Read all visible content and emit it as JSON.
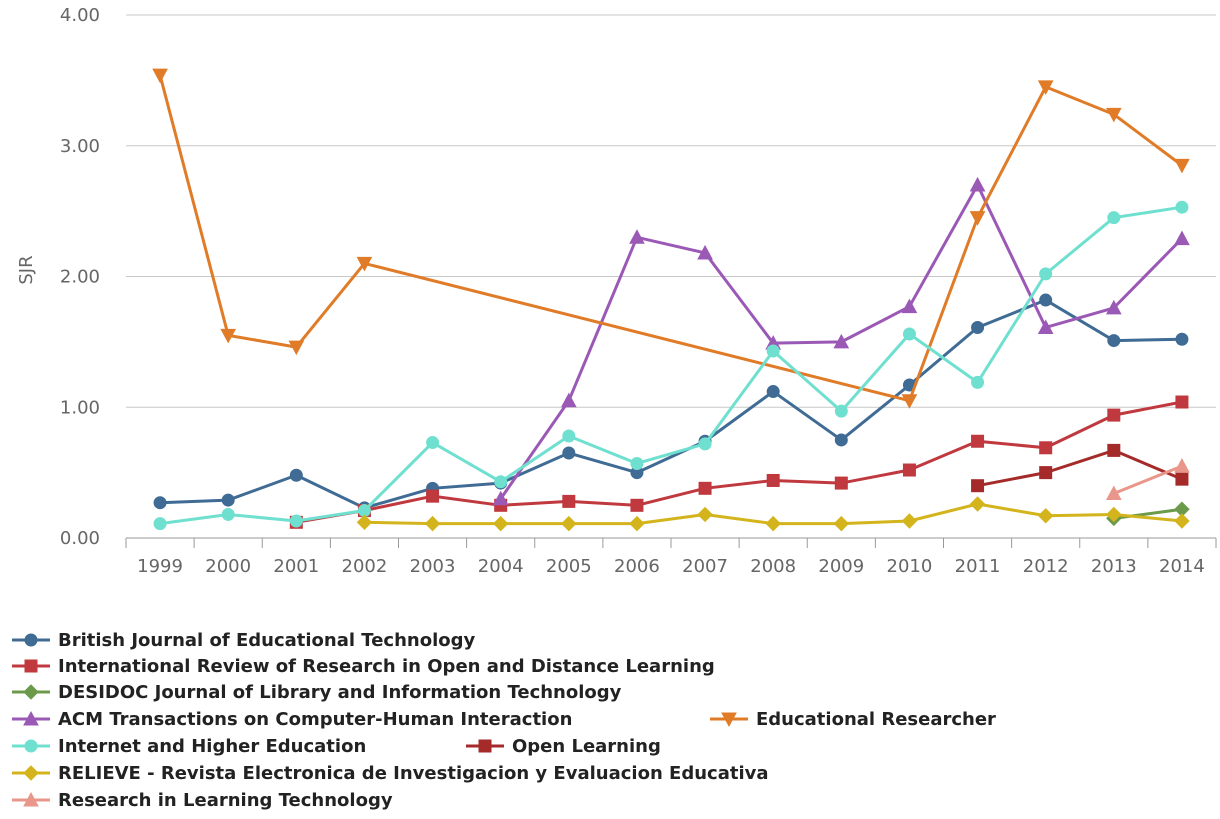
{
  "chart_data": {
    "type": "line",
    "title": "",
    "xlabel": "",
    "ylabel": "SJR",
    "ylim": [
      0,
      4
    ],
    "yticks": [
      "0.00",
      "1.00",
      "2.00",
      "3.00",
      "4.00"
    ],
    "ytick_values": [
      0,
      1,
      2,
      3,
      4
    ],
    "categories": [
      "1999",
      "2000",
      "2001",
      "2002",
      "2003",
      "2004",
      "2005",
      "2006",
      "2007",
      "2008",
      "2009",
      "2010",
      "2011",
      "2012",
      "2013",
      "2014"
    ],
    "grid": true,
    "legend_position": "bottom",
    "series": [
      {
        "name": "British Journal of Educational Technology",
        "color": "#3f6b94",
        "marker": "circle",
        "values": [
          0.27,
          0.29,
          0.48,
          0.23,
          0.38,
          0.42,
          0.65,
          0.5,
          0.74,
          1.12,
          0.75,
          1.17,
          1.61,
          1.82,
          1.51,
          1.52
        ]
      },
      {
        "name": "International Review of Research in Open and Distance Learning",
        "color": "#c0393f",
        "marker": "square",
        "values": [
          null,
          null,
          0.12,
          0.21,
          0.32,
          0.25,
          0.28,
          0.25,
          0.38,
          0.44,
          0.42,
          0.52,
          0.74,
          0.69,
          0.94,
          1.04
        ]
      },
      {
        "name": "DESIDOC Journal of Library and Information Technology",
        "color": "#6b9a4a",
        "marker": "diamond",
        "values": [
          null,
          null,
          null,
          null,
          null,
          null,
          null,
          null,
          null,
          null,
          null,
          null,
          null,
          null,
          0.15,
          0.22
        ]
      },
      {
        "name": "ACM Transactions on Computer-Human Interaction",
        "color": "#9b59b6",
        "marker": "triangle-up",
        "values": [
          null,
          null,
          null,
          null,
          null,
          0.3,
          1.05,
          2.3,
          2.18,
          1.49,
          1.5,
          1.77,
          2.7,
          1.61,
          1.76,
          2.29
        ]
      },
      {
        "name": "Educational Researcher",
        "color": "#e07b28",
        "marker": "triangle-down",
        "values": [
          3.54,
          1.55,
          1.46,
          2.1,
          null,
          null,
          null,
          null,
          null,
          null,
          null,
          1.05,
          2.45,
          3.45,
          3.24,
          2.85
        ]
      },
      {
        "name": "Internet and Higher Education",
        "color": "#6fe0cf",
        "marker": "circle",
        "values": [
          0.11,
          0.18,
          0.13,
          0.21,
          0.73,
          0.43,
          0.78,
          0.57,
          0.72,
          1.43,
          0.97,
          1.56,
          1.19,
          2.02,
          2.45,
          2.53
        ]
      },
      {
        "name": "Open Learning",
        "color": "#a52a2a",
        "marker": "square",
        "values": [
          null,
          null,
          null,
          null,
          null,
          null,
          null,
          null,
          null,
          null,
          null,
          null,
          0.4,
          0.5,
          0.67,
          0.45
        ]
      },
      {
        "name": "RELIEVE - Revista Electronica de Investigacion y Evaluacion Educativa",
        "color": "#d4b41c",
        "marker": "diamond",
        "values": [
          null,
          null,
          null,
          0.12,
          0.11,
          0.11,
          0.11,
          0.11,
          0.18,
          0.11,
          0.11,
          0.13,
          0.26,
          0.17,
          0.18,
          0.13
        ]
      },
      {
        "name": "Research in Learning Technology",
        "color": "#e8978a",
        "marker": "triangle-up",
        "values": [
          null,
          null,
          null,
          null,
          null,
          null,
          null,
          null,
          null,
          null,
          null,
          null,
          null,
          null,
          0.34,
          0.55
        ]
      }
    ]
  }
}
